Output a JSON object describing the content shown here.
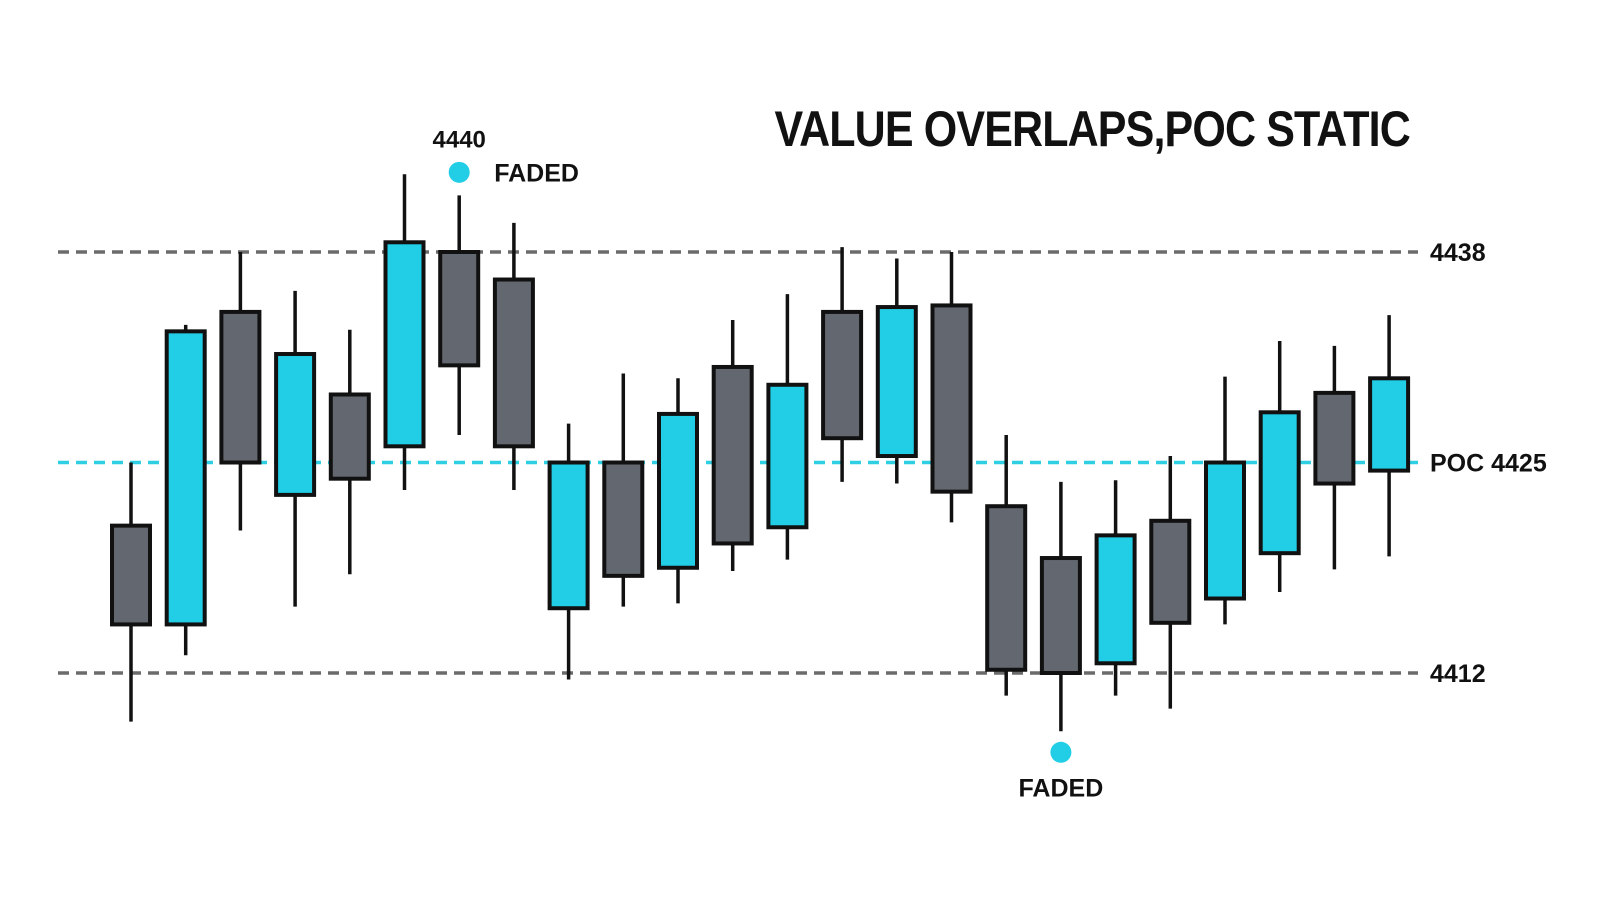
{
  "title": "VALUE OVERLAPS,POC STATIC",
  "colors": {
    "bull": "#22cde6",
    "bear": "#636870",
    "outline": "#111111",
    "level_line": "#6b6b6b",
    "poc_line": "#2fcfe3",
    "marker": "#22cde6"
  },
  "levels": {
    "high": {
      "label": "4438",
      "value": 4438
    },
    "poc": {
      "label": "POC 4425",
      "value": 4425
    },
    "low": {
      "label": "4412",
      "value": 4412
    }
  },
  "annotations": {
    "top_price": "4440",
    "top_marker_label": "FADED",
    "bottom_marker_label": "FADED"
  },
  "chart_data": {
    "type": "candlestick",
    "title": "VALUE OVERLAPS,POC STATIC",
    "xlabel": "",
    "ylabel": "",
    "ylim": [
      4403,
      4447
    ],
    "grid": false,
    "candles": [
      {
        "open": 4415.0,
        "high": 4425.0,
        "low": 4409.0,
        "close": 4421.1,
        "color": "bear"
      },
      {
        "open": 4415.0,
        "high": 4433.5,
        "low": 4413.1,
        "close": 4433.1,
        "color": "bull"
      },
      {
        "open": 4425.0,
        "high": 4438.0,
        "low": 4420.8,
        "close": 4434.3,
        "color": "bear"
      },
      {
        "open": 4423.0,
        "high": 4435.6,
        "low": 4416.1,
        "close": 4431.7,
        "color": "bull"
      },
      {
        "open": 4424.0,
        "high": 4433.2,
        "low": 4418.1,
        "close": 4429.2,
        "color": "bear"
      },
      {
        "open": 4426.0,
        "high": 4442.8,
        "low": 4423.3,
        "close": 4438.6,
        "color": "bull"
      },
      {
        "open": 4431.0,
        "high": 4441.5,
        "low": 4426.7,
        "close": 4438.0,
        "color": "bear"
      },
      {
        "open": 4426.0,
        "high": 4439.8,
        "low": 4423.3,
        "close": 4436.3,
        "color": "bear"
      },
      {
        "open": 4416.0,
        "high": 4427.4,
        "low": 4411.6,
        "close": 4425.0,
        "color": "bull"
      },
      {
        "open": 4418.0,
        "high": 4430.5,
        "low": 4416.1,
        "close": 4425.0,
        "color": "bear"
      },
      {
        "open": 4418.5,
        "high": 4430.2,
        "low": 4416.3,
        "close": 4428.0,
        "color": "bull"
      },
      {
        "open": 4420.0,
        "high": 4433.8,
        "low": 4418.3,
        "close": 4430.9,
        "color": "bear"
      },
      {
        "open": 4421.0,
        "high": 4435.4,
        "low": 4419.0,
        "close": 4429.8,
        "color": "bull"
      },
      {
        "open": 4426.5,
        "high": 4438.3,
        "low": 4423.8,
        "close": 4434.3,
        "color": "bear"
      },
      {
        "open": 4425.4,
        "high": 4437.6,
        "low": 4423.7,
        "close": 4434.6,
        "color": "bull"
      },
      {
        "open": 4423.2,
        "high": 4438.0,
        "low": 4421.3,
        "close": 4434.7,
        "color": "bear"
      },
      {
        "open": 4412.2,
        "high": 4426.7,
        "low": 4410.6,
        "close": 4422.3,
        "color": "bear"
      },
      {
        "open": 4412.0,
        "high": 4423.8,
        "low": 4408.4,
        "close": 4419.1,
        "color": "bear"
      },
      {
        "open": 4412.6,
        "high": 4423.9,
        "low": 4410.6,
        "close": 4420.5,
        "color": "bull"
      },
      {
        "open": 4415.1,
        "high": 4425.4,
        "low": 4409.8,
        "close": 4421.4,
        "color": "bear"
      },
      {
        "open": 4416.6,
        "high": 4430.3,
        "low": 4415.0,
        "close": 4425.0,
        "color": "bull"
      },
      {
        "open": 4419.4,
        "high": 4432.5,
        "low": 4417.0,
        "close": 4428.1,
        "color": "bull"
      },
      {
        "open": 4423.7,
        "high": 4432.2,
        "low": 4418.4,
        "close": 4429.3,
        "color": "bear"
      },
      {
        "open": 4424.5,
        "high": 4434.1,
        "low": 4419.2,
        "close": 4430.2,
        "color": "bull"
      }
    ],
    "annotations": [
      {
        "text": "4440",
        "candle": 6
      },
      {
        "text": "FADED",
        "candle": 6,
        "at": "high"
      },
      {
        "text": "FADED",
        "candle": 18,
        "at": "low"
      }
    ]
  }
}
